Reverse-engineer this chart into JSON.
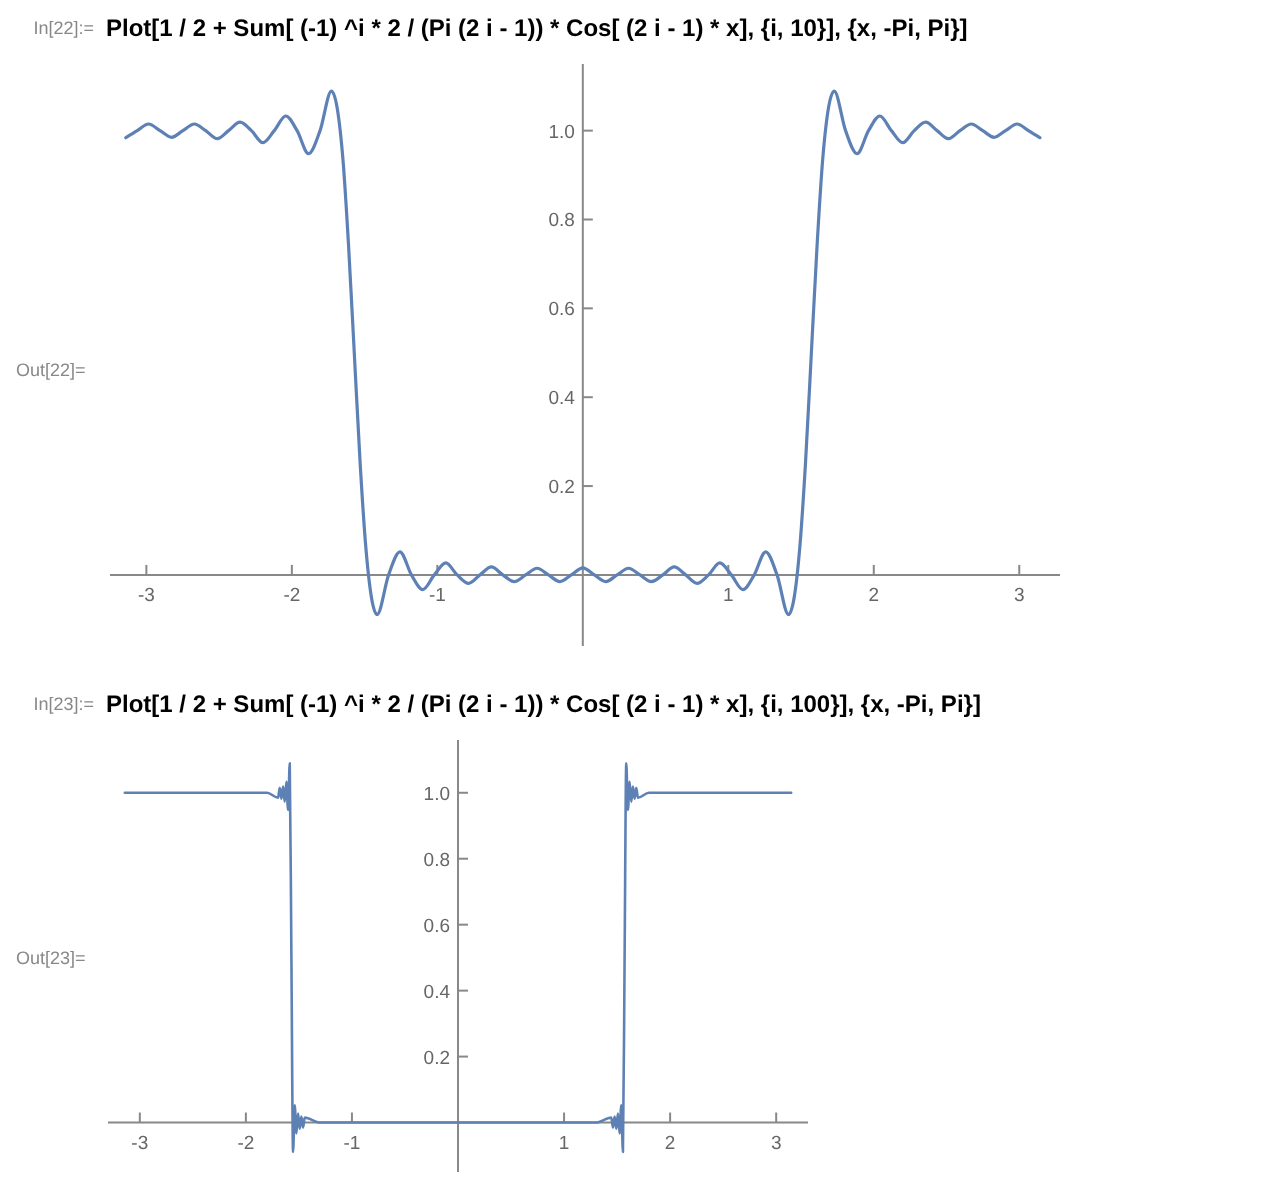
{
  "chart_data": [
    {
      "type": "line",
      "title": "Plot[1 / 2 + Sum[ (-1) ^i * 2 / (Pi (2 i - 1)) * Cos[ (2 i - 1) * x], {i, 10}], {x, -Pi, Pi}]",
      "annotations": [
        "In[22]:=",
        "Out[22]="
      ],
      "x": [
        -3.142,
        -3.063,
        -2.985,
        -2.906,
        -2.827,
        -2.749,
        -2.67,
        -2.592,
        -2.513,
        -2.435,
        -2.356,
        -2.278,
        -2.199,
        -2.121,
        -2.042,
        -1.964,
        -1.885,
        -1.806,
        -1.728,
        -1.649,
        -1.611,
        -1.571,
        -1.531,
        -1.492,
        -1.414,
        -1.335,
        -1.257,
        -1.178,
        -1.1,
        -1.021,
        -0.942,
        -0.864,
        -0.785,
        -0.707,
        -0.628,
        -0.55,
        -0.471,
        -0.393,
        -0.314,
        -0.236,
        -0.157,
        -0.079,
        0,
        0.079,
        0.157,
        0.236,
        0.314,
        0.393,
        0.471,
        0.55,
        0.628,
        0.707,
        0.785,
        0.864,
        0.942,
        1.021,
        1.1,
        1.178,
        1.257,
        1.335,
        1.414,
        1.492,
        1.531,
        1.571,
        1.611,
        1.649,
        1.728,
        1.806,
        1.885,
        1.964,
        2.042,
        2.121,
        2.199,
        2.278,
        2.356,
        2.435,
        2.513,
        2.592,
        2.67,
        2.749,
        2.827,
        2.906,
        2.985,
        3.063,
        3.142
      ],
      "series": [
        {
          "color": "#5e81b5",
          "values": [
            0.984,
            1.0,
            1.015,
            1.0,
            0.985,
            1.0,
            1.015,
            1.0,
            0.982,
            1.0,
            1.019,
            1.0,
            0.973,
            1.0,
            1.033,
            1.0,
            0.948,
            1.0,
            1.089,
            0.936,
            0.746,
            0.5,
            0.254,
            0.064,
            -0.089,
            0,
            0.052,
            0,
            -0.033,
            0,
            0.027,
            0,
            -0.019,
            0,
            0.018,
            0,
            -0.015,
            0,
            0.015,
            0,
            -0.015,
            0,
            0.016,
            0,
            -0.015,
            0,
            0.015,
            0,
            -0.015,
            0,
            0.018,
            0,
            -0.019,
            0,
            0.027,
            0,
            -0.033,
            0,
            0.052,
            0,
            -0.089,
            0.064,
            0.254,
            0.5,
            0.746,
            0.936,
            1.089,
            1.0,
            0.948,
            1.0,
            1.033,
            1.0,
            0.973,
            1.0,
            1.019,
            1.0,
            0.982,
            1.0,
            1.015,
            1.0,
            0.985,
            1.0,
            1.015,
            1.0,
            0.984
          ]
        }
      ],
      "xlim": [
        -3.25,
        3.28
      ],
      "ylim": [
        -0.16,
        1.15
      ],
      "xticks": [
        -3,
        -2,
        -1,
        1,
        2,
        3
      ],
      "yticks": [
        0.2,
        0.4,
        0.6,
        0.8,
        {
          "value": 1,
          "label": "1.0"
        }
      ]
    },
    {
      "type": "line",
      "title": "Plot[1 / 2 + Sum[ (-1) ^i * 2 / (Pi (2 i - 1)) * Cos[ (2 i - 1) * x], {i, 100}], {x, -Pi, Pi}]",
      "annotations": [
        "In[23]:=",
        "Out[23]="
      ],
      "x": [
        -3.1416,
        -2.5,
        -1.8,
        -1.6965,
        -1.6807,
        -1.665,
        -1.6493,
        -1.6336,
        -1.6179,
        -1.6022,
        -1.5865,
        -1.5708,
        -1.5551,
        -1.5394,
        -1.5237,
        -1.508,
        -1.4923,
        -1.4765,
        -1.4608,
        -1.4451,
        -1.3,
        -0.6,
        0,
        0.6,
        1.3,
        1.4451,
        1.4608,
        1.4765,
        1.4923,
        1.508,
        1.5237,
        1.5394,
        1.5551,
        1.5708,
        1.5865,
        1.6022,
        1.6179,
        1.6336,
        1.6493,
        1.665,
        1.6807,
        1.6965,
        1.8,
        2.5,
        3.1416
      ],
      "series": [
        {
          "color": "#5e81b5",
          "values": [
            1.0,
            1.0,
            1.0,
            0.985,
            1.015,
            0.982,
            1.019,
            0.973,
            1.033,
            0.948,
            1.089,
            0.5,
            -0.089,
            0.052,
            -0.033,
            0.027,
            -0.019,
            0.018,
            -0.015,
            0.015,
            0,
            0,
            0,
            0,
            0,
            0.015,
            -0.015,
            0.018,
            -0.019,
            0.027,
            -0.033,
            0.052,
            -0.089,
            0.5,
            1.089,
            0.948,
            1.033,
            0.973,
            1.019,
            0.982,
            1.015,
            0.985,
            1.0,
            1.0,
            1.0
          ]
        }
      ],
      "xlim": [
        -3.3,
        3.3
      ],
      "ylim": [
        -0.15,
        1.16
      ],
      "xticks": [
        -3,
        -2,
        -1,
        1,
        2,
        3
      ],
      "yticks": [
        0.2,
        0.4,
        0.6,
        0.8,
        {
          "value": 1,
          "label": "1.0"
        }
      ]
    }
  ]
}
